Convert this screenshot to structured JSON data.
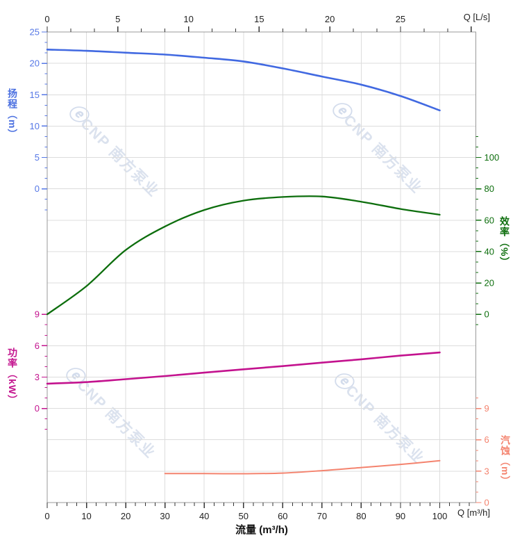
{
  "watermark": {
    "logo": "ⓔ",
    "text": "CNP 南方泵业"
  },
  "chart_data": {
    "type": "line",
    "title": "",
    "grid": true,
    "background": "#ffffff",
    "axes": {
      "x_bottom": {
        "title": "流量 (m³/h)",
        "unit_label": "Q [m³/h]",
        "labels": [
          0,
          10,
          20,
          30,
          40,
          50,
          60,
          70,
          80,
          90,
          100
        ],
        "minor_step": 2.5,
        "max_minor": 107.5,
        "label_color": "#1f1f1f",
        "tick_color": "#333333"
      },
      "x_top": {
        "unit_label": "Q [L/s]",
        "labels_ls": [
          0,
          5,
          10,
          15,
          20,
          25
        ],
        "ls_to_m3h": 3.6,
        "minor_div": 3,
        "max_minor_index": 18,
        "label_color": "#1f1f1f",
        "tick_color": "#333333"
      },
      "y": {
        "head": {
          "title": "扬程（m）",
          "side": "left",
          "min": 0,
          "max": 25,
          "row_start": 0,
          "row_end": 5,
          "ticks": [
            25,
            20,
            15,
            10,
            5,
            0
          ],
          "minor_div": 3,
          "minor_before": 0,
          "minor_after": 2,
          "color": "#4169e1",
          "label_color": "#5577e6"
        },
        "eff": {
          "title": "效率（%）",
          "side": "right",
          "min": 0,
          "max": 100,
          "row_start": 4,
          "row_end": 9,
          "ticks": [
            100,
            80,
            60,
            40,
            20,
            0
          ],
          "minor_div": 3,
          "minor_before": 2,
          "minor_after": 1,
          "color": "#0d6e0d",
          "label_color": "#0d6e0d"
        },
        "power": {
          "title": "功率（kW）",
          "side": "left",
          "min": 0,
          "max": 9,
          "row_start": 9,
          "row_end": 12,
          "ticks": [
            9,
            6,
            3,
            0
          ],
          "minor_div": 3,
          "minor_before": 0,
          "minor_after": 2,
          "color": "#c3128e",
          "label_color": "#c3138e"
        },
        "npsh": {
          "title": "汽蚀（m）",
          "side": "right",
          "min": 0,
          "max": 9,
          "row_start": 12,
          "row_end": 15,
          "ticks": [
            9,
            6,
            3,
            0
          ],
          "minor_div": 3,
          "minor_before": 1,
          "minor_after": 0,
          "color": "#f4836e",
          "label_color": "#f4836e"
        }
      }
    },
    "series": [
      {
        "name": "head-curve",
        "label": "扬程",
        "unit": "m",
        "axis": "head",
        "color": "#4169e1",
        "width": 2.6,
        "x": [
          0,
          10,
          20,
          30,
          40,
          50,
          60,
          70,
          80,
          90,
          100
        ],
        "y": [
          22.2,
          22.0,
          21.7,
          21.4,
          20.9,
          20.3,
          19.2,
          17.9,
          16.6,
          14.8,
          12.5
        ]
      },
      {
        "name": "efficiency-curve",
        "label": "效率",
        "unit": "%",
        "axis": "eff",
        "color": "#0d6e0d",
        "width": 2.3,
        "x": [
          0,
          10,
          20,
          30,
          40,
          50,
          60,
          70,
          80,
          90,
          100
        ],
        "y": [
          0,
          18,
          41,
          56,
          66.5,
          72.5,
          74.8,
          75.1,
          71.8,
          67.2,
          63.5
        ]
      },
      {
        "name": "power-curve",
        "label": "功率",
        "unit": "kW",
        "axis": "power",
        "color": "#c3128e",
        "width": 2.6,
        "x": [
          0,
          10,
          20,
          30,
          40,
          50,
          60,
          70,
          80,
          90,
          100
        ],
        "y": [
          2.37,
          2.52,
          2.8,
          3.1,
          3.42,
          3.74,
          4.05,
          4.38,
          4.7,
          5.05,
          5.35
        ]
      },
      {
        "name": "npsh-curve",
        "label": "汽蚀",
        "unit": "m",
        "axis": "npsh",
        "color": "#f4836e",
        "width": 2.0,
        "x": [
          30,
          40,
          50,
          60,
          70,
          80,
          90,
          100
        ],
        "y": [
          2.78,
          2.77,
          2.76,
          2.82,
          3.05,
          3.35,
          3.65,
          4.0
        ]
      }
    ],
    "style": {
      "grid_color": "#dcdcdc",
      "border_color": "#999999"
    }
  }
}
